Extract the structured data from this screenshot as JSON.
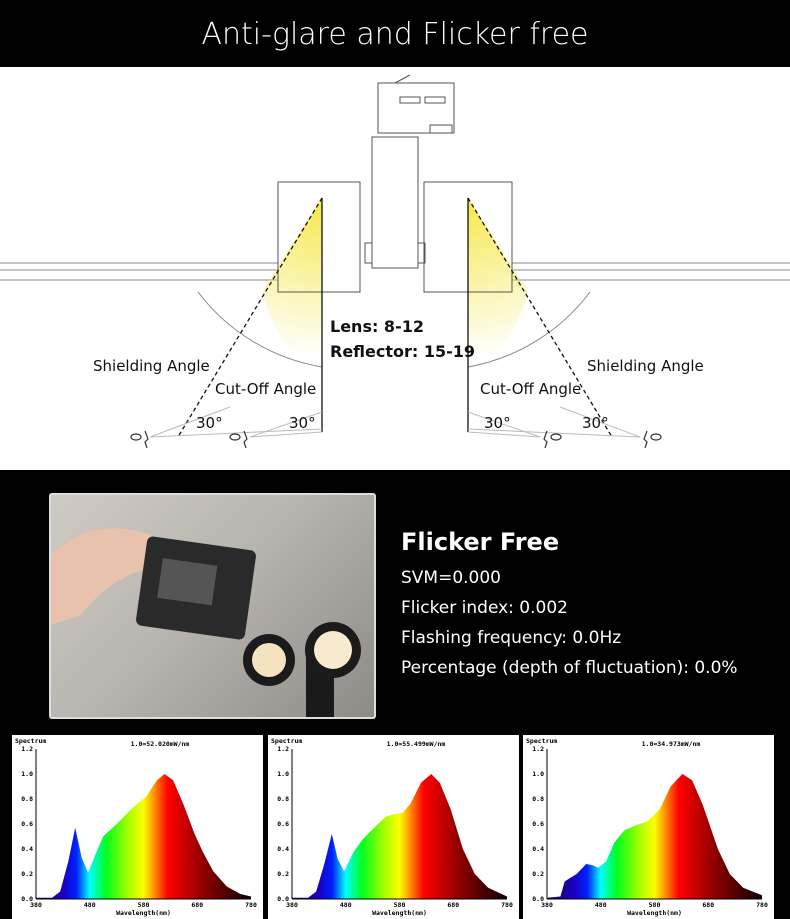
{
  "header": {
    "title": "Anti-glare and Flicker free"
  },
  "diagram": {
    "lens": "Lens: 8-12",
    "reflector": "Reflector: 15-19",
    "shielding_left": "Shielding Angle",
    "shielding_right": "Shielding Angle",
    "cutoff_left": "Cut-Off Angle",
    "cutoff_right": "Cut-Off Angle",
    "angles": [
      "30°",
      "30°",
      "30°",
      "30°"
    ],
    "glow_color": "#f5e84a"
  },
  "flicker": {
    "title": "Flicker Free",
    "lines": [
      "SVM=0.000",
      "Flicker index: 0.002",
      "Flashing frequency: 0.0Hz",
      "Percentage (depth of fluctuation): 0.0%"
    ]
  },
  "chart_data": [
    {
      "type": "area",
      "title": "Spectrum",
      "annotation": "1.0=52.020mW/nm",
      "xlabel": "Wavelength(nm)",
      "xlim": [
        380,
        780
      ],
      "ylim": [
        0,
        1.2
      ],
      "xticks": [
        "380",
        "480",
        "580",
        "680",
        "780"
      ],
      "yticks": [
        "0.0",
        "0.2",
        "0.4",
        "0.6",
        "0.8",
        "1.0",
        "1.2"
      ],
      "x": [
        380,
        410,
        425,
        440,
        453,
        465,
        477,
        490,
        505,
        530,
        560,
        585,
        605,
        619,
        635,
        655,
        675,
        690,
        710,
        735,
        760,
        780
      ],
      "y": [
        0.01,
        0.01,
        0.06,
        0.3,
        0.57,
        0.33,
        0.21,
        0.35,
        0.5,
        0.6,
        0.73,
        0.82,
        0.95,
        1.0,
        0.95,
        0.75,
        0.52,
        0.38,
        0.22,
        0.1,
        0.04,
        0.02
      ]
    },
    {
      "type": "area",
      "title": "Spectrum",
      "annotation": "1.0=55.499mW/nm",
      "xlabel": "Wavelength(nm)",
      "xlim": [
        380,
        780
      ],
      "ylim": [
        0,
        1.2
      ],
      "xticks": [
        "380",
        "480",
        "580",
        "680",
        "780"
      ],
      "yticks": [
        "0.0",
        "0.2",
        "0.4",
        "0.6",
        "0.8",
        "1.0",
        "1.2"
      ],
      "x": [
        380,
        410,
        425,
        440,
        454,
        465,
        477,
        495,
        512,
        535,
        555,
        572,
        586,
        600,
        620,
        639,
        655,
        675,
        698,
        720,
        745,
        780
      ],
      "y": [
        0.01,
        0.01,
        0.06,
        0.28,
        0.52,
        0.32,
        0.22,
        0.38,
        0.48,
        0.58,
        0.66,
        0.68,
        0.69,
        0.76,
        0.93,
        1.0,
        0.93,
        0.72,
        0.4,
        0.2,
        0.09,
        0.02
      ]
    },
    {
      "type": "area",
      "title": "Spectrum",
      "annotation": "1.0=34.973mW/nm",
      "xlabel": "Wavelength(nm)",
      "xlim": [
        380,
        780
      ],
      "ylim": [
        0,
        1.2
      ],
      "xticks": [
        "380",
        "480",
        "580",
        "680",
        "780"
      ],
      "yticks": [
        "0.0",
        "0.2",
        "0.4",
        "0.6",
        "0.8",
        "1.0",
        "1.2"
      ],
      "x": [
        380,
        405,
        413,
        420,
        435,
        453,
        465,
        475,
        490,
        505,
        524,
        545,
        567,
        590,
        610,
        632,
        650,
        670,
        698,
        720,
        745,
        780
      ],
      "y": [
        0.01,
        0.02,
        0.14,
        0.16,
        0.2,
        0.28,
        0.27,
        0.25,
        0.3,
        0.45,
        0.55,
        0.59,
        0.62,
        0.72,
        0.9,
        1.0,
        0.95,
        0.75,
        0.4,
        0.2,
        0.09,
        0.03
      ]
    }
  ]
}
